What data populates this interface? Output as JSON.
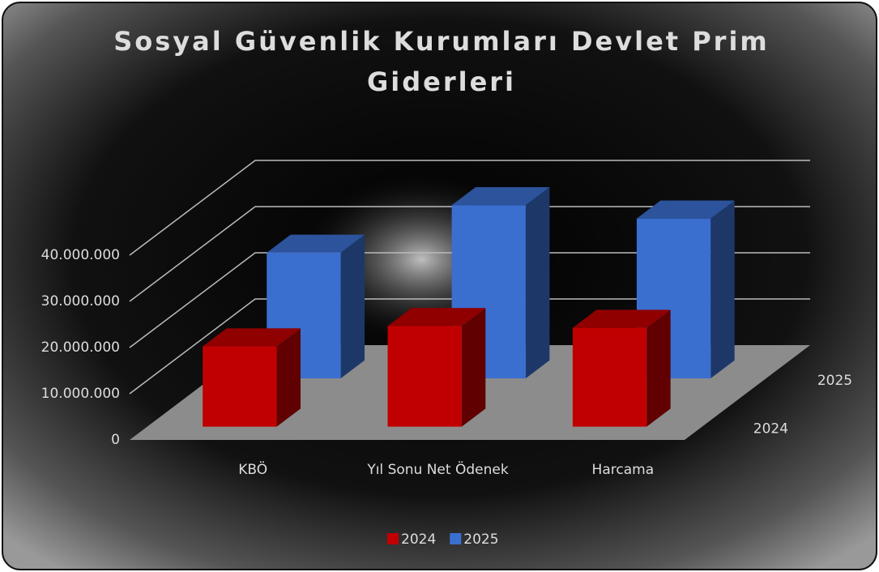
{
  "chart_data": {
    "type": "bar3d",
    "title": [
      "Sosyal Güvenlik Kurumları Devlet Prim",
      "Giderleri"
    ],
    "categories": [
      "KBÖ",
      "Yıl Sonu Net Ödenek",
      "Harcama"
    ],
    "series": [
      {
        "name": "2024",
        "color": "#c00000",
        "values": [
          17400000,
          21800000,
          21400000
        ]
      },
      {
        "name": "2025",
        "color": "#3a6fd0",
        "values": [
          27200000,
          37500000,
          34600000
        ]
      }
    ],
    "ylim": [
      0,
      40000000
    ],
    "yticks": [
      0,
      {
        "value": 10000000,
        "label": "10.000.000"
      },
      {
        "value": 20000000,
        "label": "20.000.000"
      },
      {
        "value": 30000000,
        "label": "30.000.000"
      },
      {
        "value": 40000000,
        "label": "40.000.000"
      }
    ],
    "grid": true,
    "legend": "bottom"
  }
}
